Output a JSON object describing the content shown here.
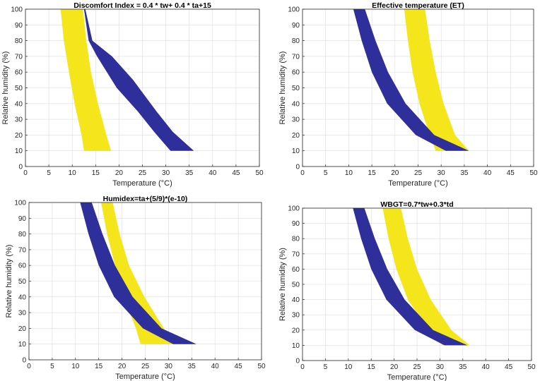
{
  "colors": {
    "yellow": "#f4e61a",
    "blue": "#2e2f9a",
    "axis": "#262626",
    "grid": "#dcdcdc"
  },
  "chart_data": [
    {
      "type": "area",
      "title": "Discomfort Index = 0.4 * tw+ 0.4 * ta+15",
      "xlabel": "Temperature (°C)",
      "ylabel": "Relative humidity (%)",
      "xlim": [
        0,
        50
      ],
      "ylim": [
        0,
        100
      ],
      "xticks": [
        "0",
        "5",
        "10",
        "15",
        "20",
        "25",
        "30",
        "35",
        "40",
        "45",
        "50"
      ],
      "yticks": [
        "0",
        "10",
        "20",
        "30",
        "40",
        "50",
        "60",
        "70",
        "80",
        "90",
        "100"
      ],
      "grid": true,
      "series": [
        {
          "name": "yellow band",
          "color": "yellow",
          "left": [
            [
              7.5,
              100
            ],
            [
              8.2,
              80
            ],
            [
              9.3,
              60
            ],
            [
              10.5,
              40
            ],
            [
              12,
              20
            ],
            [
              12.5,
              10
            ]
          ],
          "right": [
            [
              12.3,
              100
            ],
            [
              13,
              80
            ],
            [
              14,
              60
            ],
            [
              15.5,
              40
            ],
            [
              17.3,
              20
            ],
            [
              18.3,
              10
            ]
          ]
        },
        {
          "name": "blue band",
          "color": "blue",
          "left": [
            [
              12.5,
              100
            ],
            [
              13.5,
              80
            ],
            [
              15.3,
              70
            ],
            [
              19.5,
              50
            ],
            [
              24,
              35
            ],
            [
              27.5,
              22
            ],
            [
              31,
              10
            ]
          ],
          "right": [
            [
              12.8,
              100
            ],
            [
              14.3,
              80
            ],
            [
              18.5,
              70
            ],
            [
              23,
              55
            ],
            [
              28,
              35
            ],
            [
              31.5,
              22
            ],
            [
              36,
              10
            ]
          ]
        }
      ]
    },
    {
      "type": "area",
      "title": "Effective temperature (ET)",
      "xlabel": "Temperature (°C)",
      "ylabel": "Relative humidity (%)",
      "xlim": [
        0,
        50
      ],
      "ylim": [
        0,
        100
      ],
      "xticks": [
        "0",
        "5",
        "10",
        "15",
        "20",
        "25",
        "30",
        "35",
        "40",
        "45",
        "50"
      ],
      "yticks": [
        "0",
        "10",
        "20",
        "30",
        "40",
        "50",
        "60",
        "70",
        "80",
        "90",
        "100"
      ],
      "grid": true,
      "series": [
        {
          "name": "yellow band",
          "color": "yellow",
          "left": [
            [
              22,
              100
            ],
            [
              22.8,
              80
            ],
            [
              23.8,
              60
            ],
            [
              25.3,
              40
            ],
            [
              27.5,
              20
            ],
            [
              28.8,
              10
            ]
          ],
          "right": [
            [
              26.5,
              100
            ],
            [
              27.5,
              80
            ],
            [
              28.8,
              60
            ],
            [
              30.5,
              40
            ],
            [
              33,
              20
            ],
            [
              36,
              10
            ]
          ]
        },
        {
          "name": "blue band",
          "color": "blue",
          "left": [
            [
              11,
              100
            ],
            [
              12.8,
              80
            ],
            [
              15,
              60
            ],
            [
              18.3,
              40
            ],
            [
              24.5,
              20
            ],
            [
              31,
              10
            ]
          ],
          "right": [
            [
              13.5,
              100
            ],
            [
              15.8,
              80
            ],
            [
              18.5,
              60
            ],
            [
              22.3,
              40
            ],
            [
              28.5,
              20
            ],
            [
              36,
              10
            ]
          ]
        }
      ]
    },
    {
      "type": "area",
      "title": "Humidex=ta+(5/9)*(e-10)",
      "xlabel": "Temperature (°C)",
      "ylabel": "Relative humidity (%)",
      "xlim": [
        0,
        50
      ],
      "ylim": [
        0,
        100
      ],
      "xticks": [
        "0",
        "5",
        "10",
        "15",
        "20",
        "25",
        "30",
        "35",
        "40",
        "45",
        "50"
      ],
      "yticks": [
        "0",
        "10",
        "20",
        "30",
        "40",
        "50",
        "60",
        "70",
        "80",
        "90",
        "100"
      ],
      "grid": true,
      "series": [
        {
          "name": "yellow band",
          "color": "yellow",
          "left": [
            [
              15.5,
              100
            ],
            [
              16.8,
              80
            ],
            [
              18.5,
              60
            ],
            [
              20.3,
              40
            ],
            [
              23,
              20
            ],
            [
              24,
              10
            ]
          ],
          "right": [
            [
              18,
              100
            ],
            [
              19.5,
              80
            ],
            [
              21.5,
              60
            ],
            [
              24.8,
              40
            ],
            [
              29,
              20
            ],
            [
              31,
              10
            ]
          ]
        },
        {
          "name": "blue band",
          "color": "blue",
          "left": [
            [
              11,
              100
            ],
            [
              12.8,
              80
            ],
            [
              15,
              60
            ],
            [
              18.3,
              40
            ],
            [
              24.5,
              20
            ],
            [
              31,
              10
            ]
          ],
          "right": [
            [
              13.5,
              100
            ],
            [
              15.8,
              80
            ],
            [
              18.5,
              60
            ],
            [
              22.3,
              40
            ],
            [
              28.5,
              20
            ],
            [
              36,
              10
            ]
          ]
        }
      ]
    },
    {
      "type": "area",
      "title": "WBGT=0.7*tw+0.3*td",
      "xlabel": "Temperature (°C)",
      "ylabel": "Relative humidity (%)",
      "xlim": [
        0,
        50
      ],
      "ylim": [
        0,
        100
      ],
      "xticks": [
        "0",
        "5",
        "10",
        "15",
        "20",
        "25",
        "30",
        "35",
        "40",
        "45",
        "50"
      ],
      "yticks": [
        "0",
        "10",
        "20",
        "30",
        "40",
        "50",
        "60",
        "70",
        "80",
        "90",
        "100"
      ],
      "grid": true,
      "series": [
        {
          "name": "yellow band",
          "color": "yellow",
          "left": [
            [
              17.5,
              100
            ],
            [
              18.8,
              80
            ],
            [
              20.5,
              60
            ],
            [
              23,
              40
            ],
            [
              27.5,
              20
            ],
            [
              30.5,
              10
            ]
          ],
          "right": [
            [
              21.5,
              100
            ],
            [
              23,
              80
            ],
            [
              25,
              60
            ],
            [
              28,
              40
            ],
            [
              32.5,
              20
            ],
            [
              36.5,
              10
            ]
          ]
        },
        {
          "name": "blue band",
          "color": "blue",
          "left": [
            [
              11,
              100
            ],
            [
              12.8,
              80
            ],
            [
              15,
              60
            ],
            [
              18.3,
              40
            ],
            [
              24.5,
              20
            ],
            [
              31,
              10
            ]
          ],
          "right": [
            [
              13.5,
              100
            ],
            [
              15.8,
              80
            ],
            [
              18.5,
              60
            ],
            [
              22.3,
              40
            ],
            [
              28.5,
              20
            ],
            [
              36,
              10
            ]
          ]
        }
      ]
    }
  ]
}
